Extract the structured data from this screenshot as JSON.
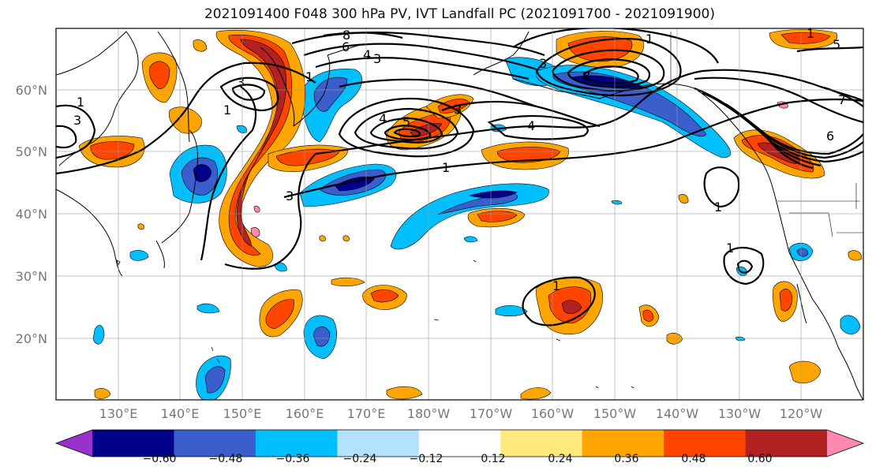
{
  "title": "2021091400 F048 300 hPa PV, IVT Landfall PC (2021091700 - 2021091900)",
  "lat_labels": [
    "60°N",
    "50°N",
    "40°N",
    "30°N",
    "20°N"
  ],
  "lon_labels": [
    "130°E",
    "140°E",
    "150°E",
    "160°E",
    "170°E",
    "180°W",
    "170°W",
    "160°W",
    "150°W",
    "140°W",
    "130°W",
    "120°W"
  ],
  "colorbar": {
    "ticks": [
      "−0.60",
      "−0.48",
      "−0.36",
      "−0.24",
      "−0.12",
      "0.12",
      "0.24",
      "0.36",
      "0.48",
      "0.60"
    ],
    "colors": [
      "#9932cc",
      "#00008b",
      "#3a5fcd",
      "#00bfff",
      "#b2e2ff",
      "#ffffff",
      "#ffe97f",
      "#ffa500",
      "#ff4500",
      "#b22222",
      "#ff88b0"
    ]
  },
  "contour_labels": [
    "1",
    "3",
    "1",
    "3",
    "1",
    "1",
    "3",
    "6",
    "8",
    "3",
    "4",
    "3",
    "5",
    "4",
    "3",
    "8",
    "1",
    "4",
    "6",
    "5",
    "7",
    "1",
    "1",
    "1",
    "1"
  ]
}
